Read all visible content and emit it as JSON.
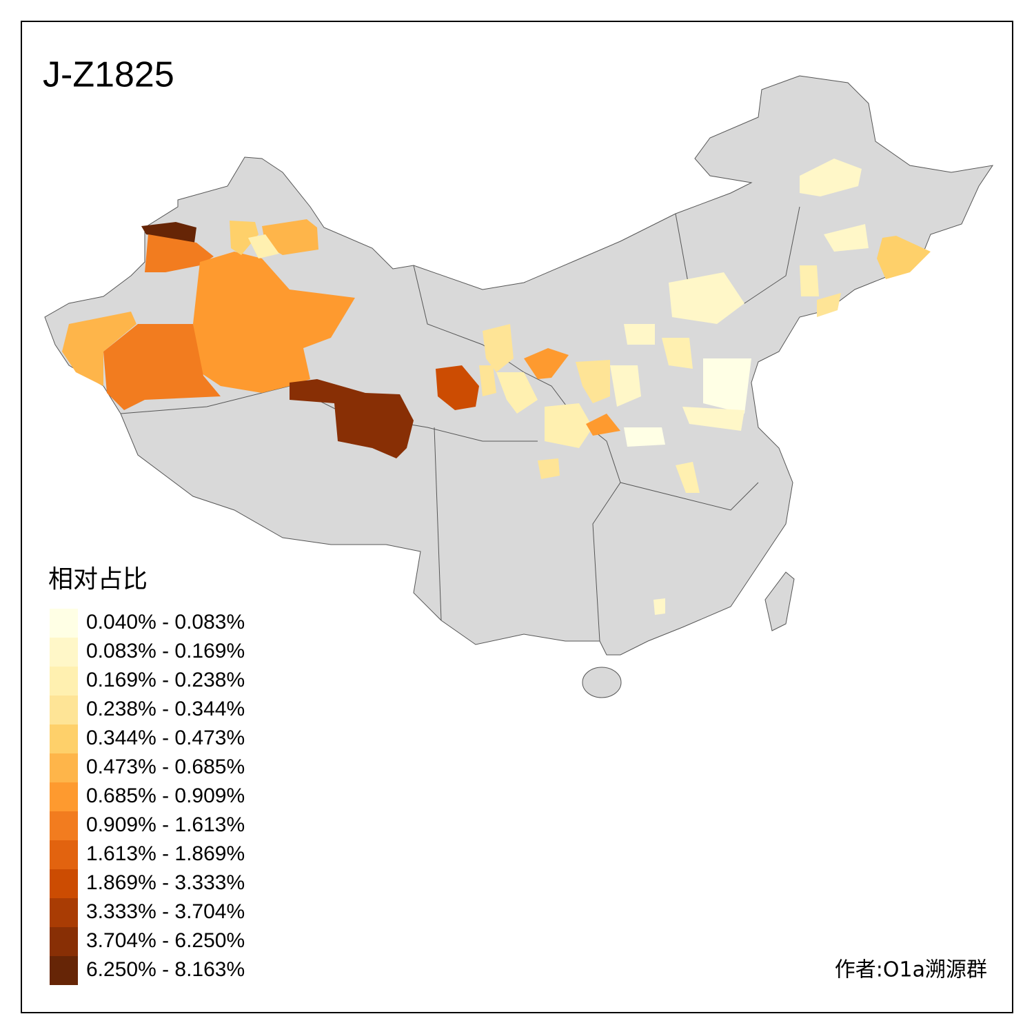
{
  "title": "J-Z1825",
  "legend": {
    "title": "相对占比",
    "entries": [
      {
        "label": "0.040% - 0.083%",
        "color": "#ffffe5"
      },
      {
        "label": "0.083% - 0.169%",
        "color": "#fff7c8"
      },
      {
        "label": "0.169% - 0.238%",
        "color": "#fff0b0"
      },
      {
        "label": "0.238% - 0.344%",
        "color": "#fee496"
      },
      {
        "label": "0.344% - 0.473%",
        "color": "#fed06a"
      },
      {
        "label": "0.473% - 0.685%",
        "color": "#feb54a"
      },
      {
        "label": "0.685% - 0.909%",
        "color": "#fe9a2f"
      },
      {
        "label": "0.909% - 1.613%",
        "color": "#f27c1f"
      },
      {
        "label": "1.613% - 1.869%",
        "color": "#e2630f"
      },
      {
        "label": "1.869% - 3.333%",
        "color": "#cc4c02"
      },
      {
        "label": "3.333% - 3.704%",
        "color": "#a93c04"
      },
      {
        "label": "3.704% - 6.250%",
        "color": "#882f05"
      },
      {
        "label": "6.250% - 8.163%",
        "color": "#662506"
      }
    ]
  },
  "author": "作者:O1a溯源群"
}
